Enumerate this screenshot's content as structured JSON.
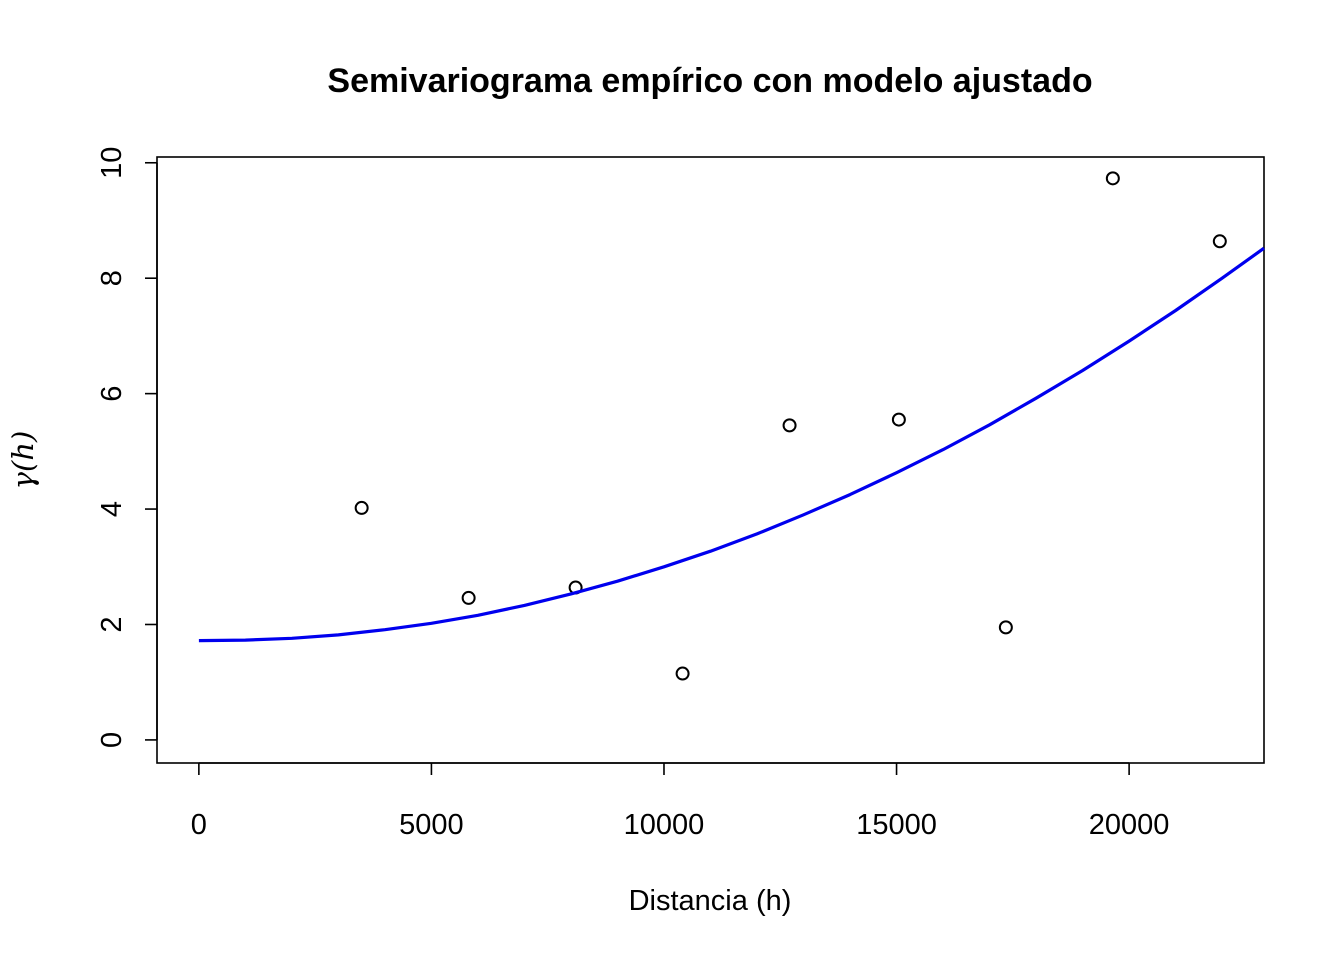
{
  "chart_data": {
    "type": "scatter",
    "title": "Semivariograma empírico con modelo ajustado",
    "xlabel": "Distancia (h)",
    "ylabel": "γ(h)",
    "xlim": [
      -900,
      22900
    ],
    "ylim": [
      -0.4,
      10.1
    ],
    "xticks": [
      0,
      5000,
      10000,
      15000,
      20000
    ],
    "xtick_labels": [
      "0",
      "5000",
      "10000",
      "15000",
      "20000"
    ],
    "yticks": [
      0,
      2,
      4,
      6,
      8,
      10
    ],
    "ytick_labels": [
      "0",
      "2",
      "4",
      "6",
      "8",
      "10"
    ],
    "grid": false,
    "series": [
      {
        "kind": "points",
        "marker": "open-circle",
        "color": "#000000",
        "x": [
          3500,
          5800,
          8100,
          10400,
          12700,
          15050,
          17350,
          19650,
          21950
        ],
        "y": [
          4.02,
          2.46,
          2.64,
          1.15,
          5.45,
          5.55,
          1.95,
          9.73,
          8.64
        ]
      },
      {
        "kind": "line",
        "color": "#0000ee",
        "x": [
          0,
          1000,
          2000,
          3000,
          4000,
          5000,
          6000,
          7000,
          8000,
          9000,
          10000,
          11000,
          12000,
          13000,
          14000,
          15000,
          16000,
          17000,
          18000,
          19000,
          20000,
          21000,
          22000,
          22900
        ],
        "y": [
          1.72,
          1.73,
          1.76,
          1.82,
          1.91,
          2.02,
          2.16,
          2.33,
          2.53,
          2.75,
          3.0,
          3.27,
          3.57,
          3.9,
          4.25,
          4.63,
          5.03,
          5.46,
          5.92,
          6.4,
          6.91,
          7.44,
          8.0,
          8.52
        ]
      }
    ]
  }
}
